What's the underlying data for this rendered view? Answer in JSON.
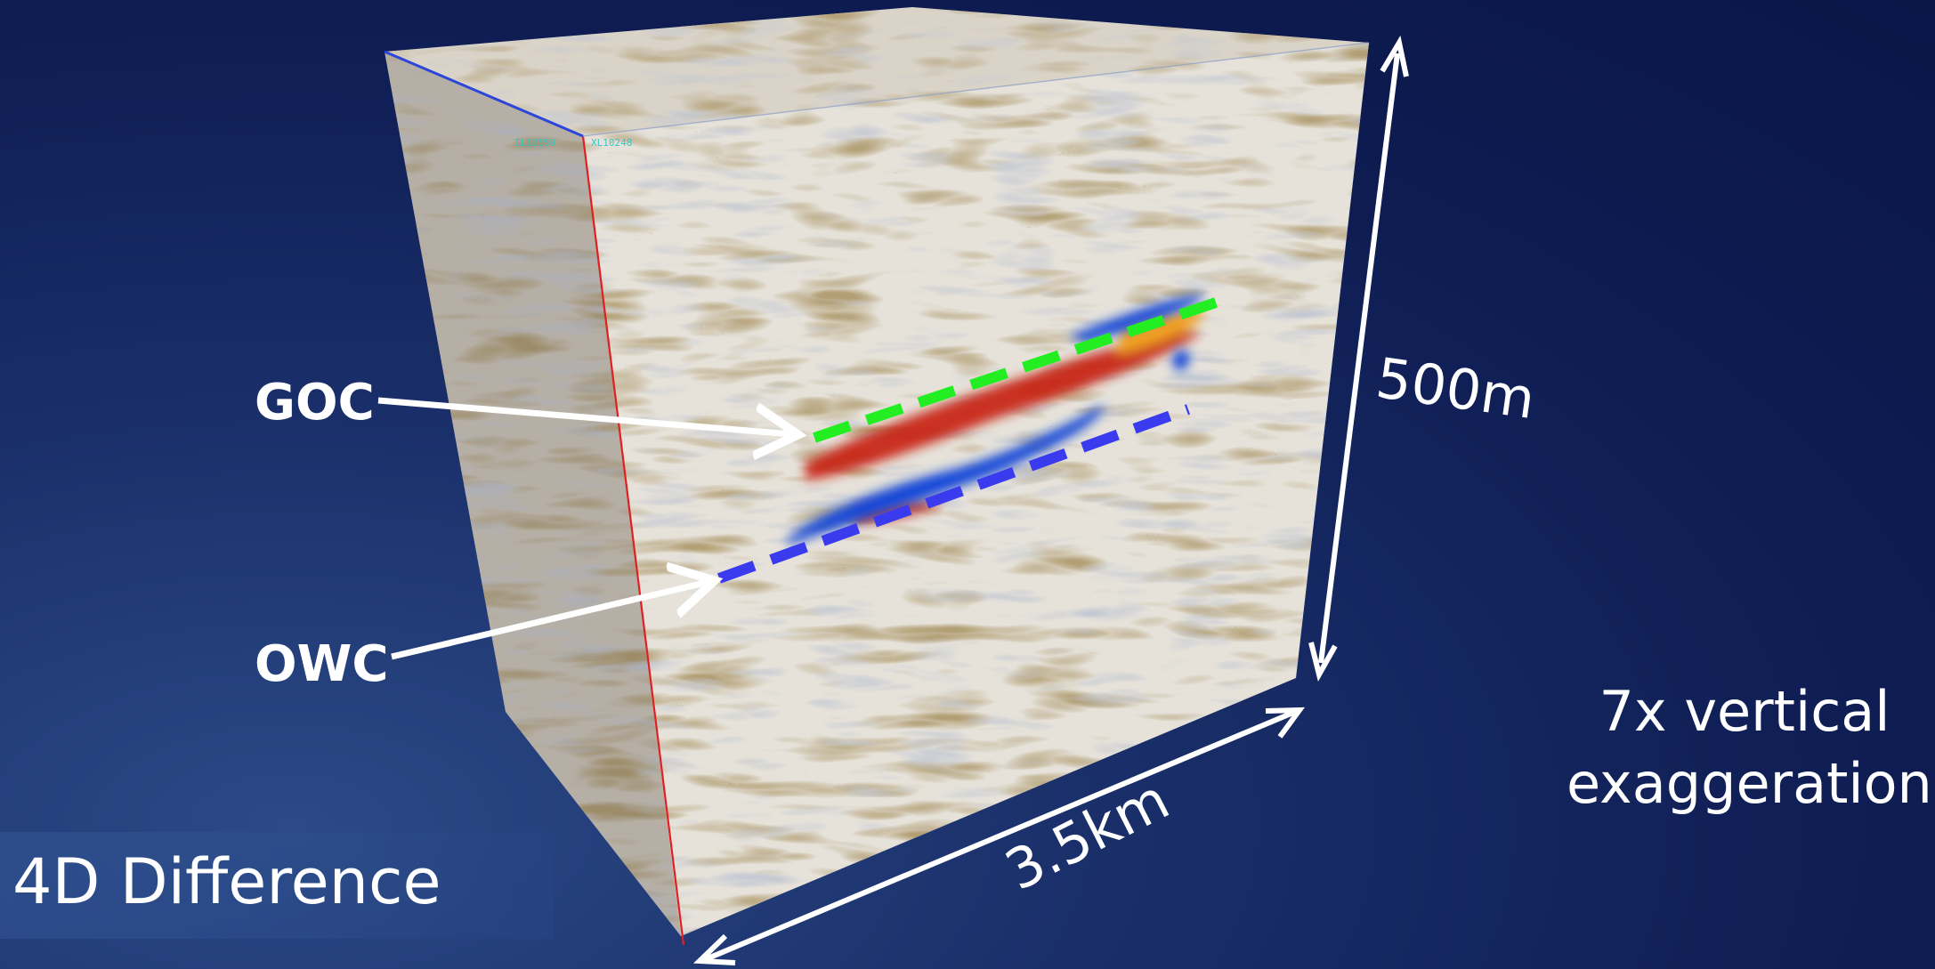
{
  "title": "4D Difference",
  "annotations": {
    "goc": "GOC",
    "owc": "OWC",
    "height": "500m",
    "width": "3.5km",
    "exaggeration": "7x vertical exaggeration"
  },
  "cube_corner_labels": {
    "inline": "IL10559",
    "crossline": "XL10248"
  },
  "colors": {
    "background": "#0e1c52",
    "goc_line": "#22ee22",
    "owc_line": "#3a3aee",
    "cube_edge": "#e02020",
    "label": "#ffffff",
    "corner_label": "#33c6c6"
  }
}
